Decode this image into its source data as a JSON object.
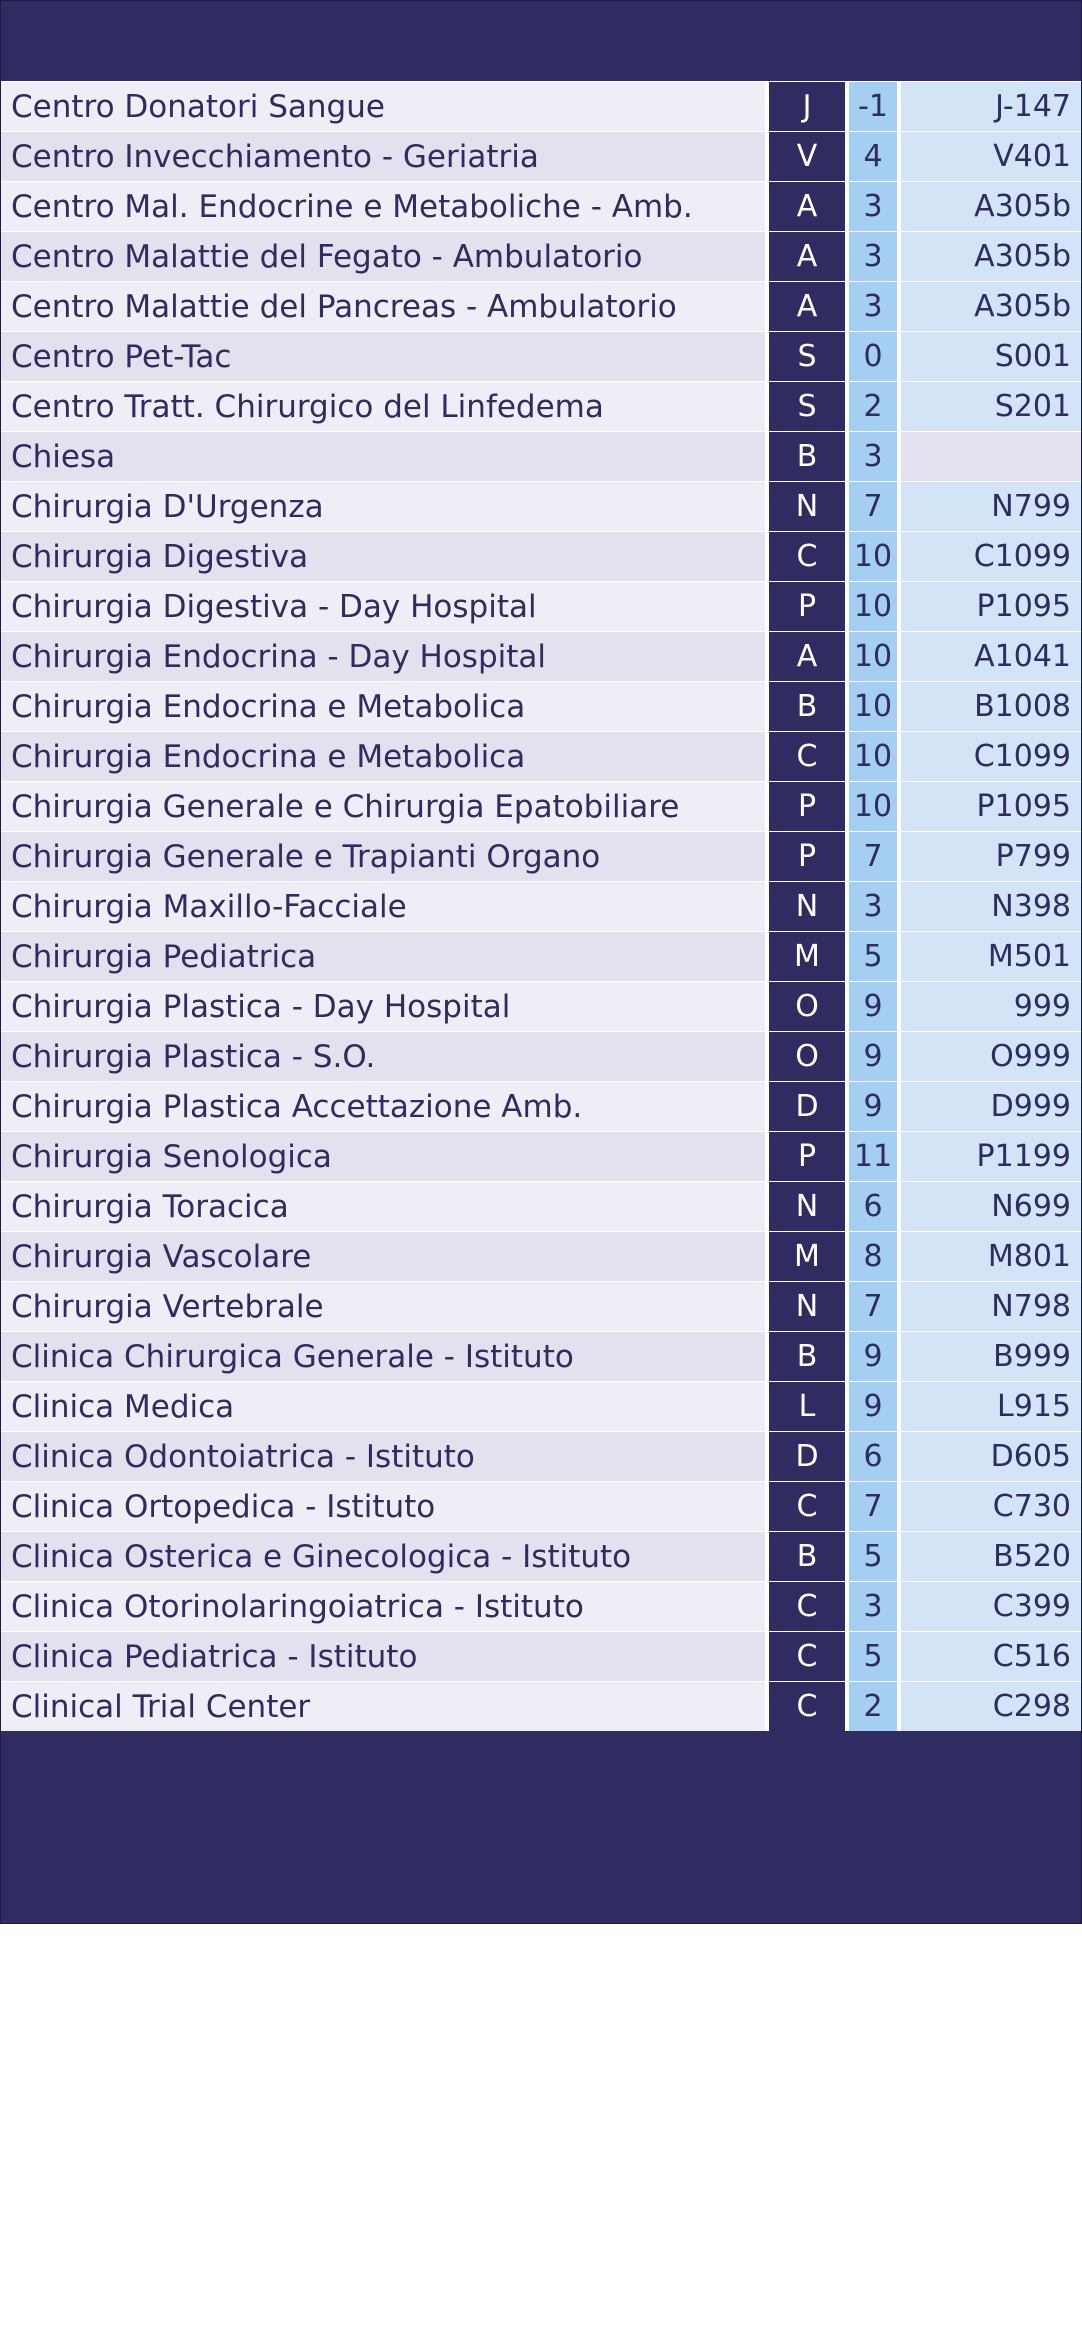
{
  "colors": {
    "navy": "#2e2c60",
    "row_light": "#efeef6",
    "row_dark": "#e3e1ee",
    "floor_blue": "#a5cff2",
    "room_blue": "#d3e4f6"
  },
  "rows": [
    {
      "name": "Centro Donatori Sangue",
      "block": "J",
      "floor": "-1",
      "room": "J-147"
    },
    {
      "name": "Centro Invecchiamento - Geriatria",
      "block": "V",
      "floor": "4",
      "room": "V401"
    },
    {
      "name": "Centro Mal. Endocrine e Metaboliche - Amb.",
      "block": "A",
      "floor": "3",
      "room": "A305b"
    },
    {
      "name": "Centro Malattie del Fegato - Ambulatorio",
      "block": "A",
      "floor": "3",
      "room": "A305b"
    },
    {
      "name": "Centro Malattie del Pancreas - Ambulatorio",
      "block": "A",
      "floor": "3",
      "room": "A305b"
    },
    {
      "name": "Centro Pet-Tac",
      "block": "S",
      "floor": "0",
      "room": "S001"
    },
    {
      "name": "Centro Tratt. Chirurgico del Linfedema",
      "block": "S",
      "floor": "2",
      "room": "S201"
    },
    {
      "name": "Chiesa",
      "block": "B",
      "floor": "3",
      "room": ""
    },
    {
      "name": "Chirurgia D'Urgenza",
      "block": "N",
      "floor": "7",
      "room": "N799"
    },
    {
      "name": "Chirurgia Digestiva",
      "block": "C",
      "floor": "10",
      "room": "C1099"
    },
    {
      "name": "Chirurgia Digestiva - Day Hospital",
      "block": "P",
      "floor": "10",
      "room": "P1095"
    },
    {
      "name": "Chirurgia Endocrina - Day Hospital",
      "block": "A",
      "floor": "10",
      "room": "A1041"
    },
    {
      "name": "Chirurgia Endocrina e Metabolica",
      "block": "B",
      "floor": "10",
      "room": "B1008"
    },
    {
      "name": "Chirurgia Endocrina e Metabolica",
      "block": "C",
      "floor": "10",
      "room": "C1099"
    },
    {
      "name": "Chirurgia Generale e Chirurgia Epatobiliare",
      "block": "P",
      "floor": "10",
      "room": "P1095"
    },
    {
      "name": "Chirurgia Generale e Trapianti Organo",
      "block": "P",
      "floor": "7",
      "room": "P799"
    },
    {
      "name": "Chirurgia Maxillo-Facciale",
      "block": "N",
      "floor": "3",
      "room": "N398"
    },
    {
      "name": "Chirurgia Pediatrica",
      "block": "M",
      "floor": "5",
      "room": "M501"
    },
    {
      "name": "Chirurgia Plastica - Day Hospital",
      "block": "O",
      "floor": "9",
      "room": "999"
    },
    {
      "name": "Chirurgia Plastica - S.O.",
      "block": "O",
      "floor": "9",
      "room": "O999"
    },
    {
      "name": "Chirurgia Plastica Accettazione Amb.",
      "block": "D",
      "floor": "9",
      "room": "D999"
    },
    {
      "name": "Chirurgia Senologica",
      "block": "P",
      "floor": "11",
      "room": "P1199"
    },
    {
      "name": "Chirurgia Toracica",
      "block": "N",
      "floor": "6",
      "room": "N699"
    },
    {
      "name": "Chirurgia Vascolare",
      "block": "M",
      "floor": "8",
      "room": "M801"
    },
    {
      "name": "Chirurgia Vertebrale",
      "block": "N",
      "floor": "7",
      "room": "N798"
    },
    {
      "name": "Clinica Chirurgica Generale - Istituto",
      "block": "B",
      "floor": "9",
      "room": "B999"
    },
    {
      "name": "Clinica Medica",
      "block": "L",
      "floor": "9",
      "room": "L915"
    },
    {
      "name": "Clinica Odontoiatrica - Istituto",
      "block": "D",
      "floor": "6",
      "room": "D605"
    },
    {
      "name": "Clinica Ortopedica - Istituto",
      "block": "C",
      "floor": "7",
      "room": "C730"
    },
    {
      "name": "Clinica Osterica e Ginecologica - Istituto",
      "block": "B",
      "floor": "5",
      "room": "B520"
    },
    {
      "name": "Clinica Otorinolaringoiatrica - Istituto",
      "block": "C",
      "floor": "3",
      "room": "C399"
    },
    {
      "name": "Clinica Pediatrica - Istituto",
      "block": "C",
      "floor": "5",
      "room": "C516"
    },
    {
      "name": "Clinical Trial Center",
      "block": "C",
      "floor": "2",
      "room": "C298"
    }
  ]
}
